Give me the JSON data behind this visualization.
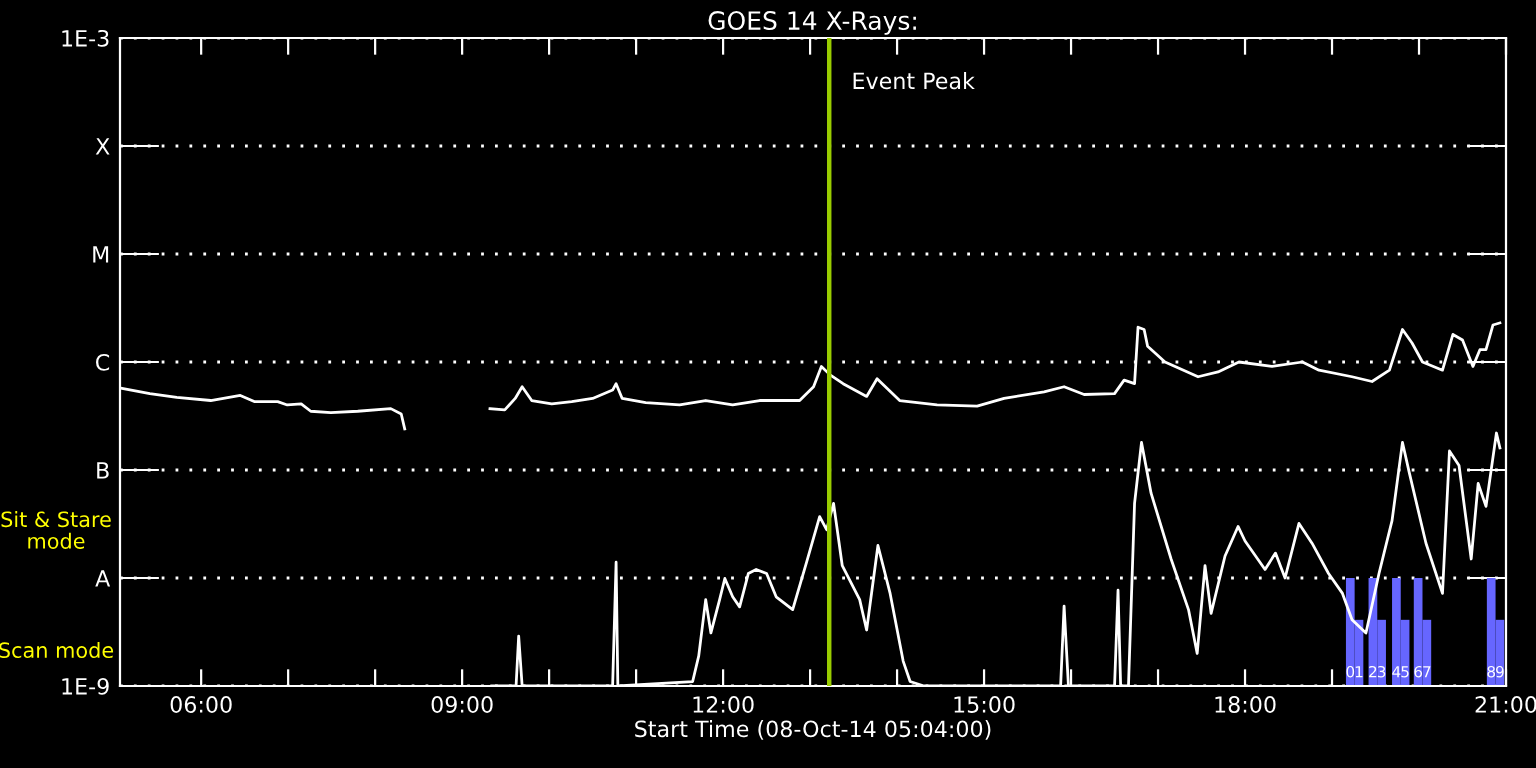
{
  "chart_data": {
    "type": "line",
    "title": "GOES 14 X-Rays:",
    "xlabel": "Start Time (08-Oct-14 05:04:00)",
    "log": true,
    "grid": "y",
    "xlim": [
      5.067,
      21.0
    ],
    "xticks": [
      {
        "value": 6,
        "label": "06:00"
      },
      {
        "value": 7,
        "label": null
      },
      {
        "value": 8,
        "label": null
      },
      {
        "value": 9,
        "label": "09:00"
      },
      {
        "value": 10,
        "label": null
      },
      {
        "value": 11,
        "label": null
      },
      {
        "value": 12,
        "label": "12:00"
      },
      {
        "value": 13,
        "label": null
      },
      {
        "value": 14,
        "label": null
      },
      {
        "value": 15,
        "label": "15:00"
      },
      {
        "value": 16,
        "label": null
      },
      {
        "value": 17,
        "label": null
      },
      {
        "value": 18,
        "label": "18:00"
      },
      {
        "value": 19,
        "label": null
      },
      {
        "value": 20,
        "label": null
      },
      {
        "value": 21,
        "label": "21:00"
      }
    ],
    "ylim": [
      1e-09,
      0.001
    ],
    "yticks": [
      {
        "value": 1e-09,
        "label": "1E-9"
      },
      {
        "value": 1e-08,
        "label": "A"
      },
      {
        "value": 1e-07,
        "label": "B"
      },
      {
        "value": 1e-06,
        "label": "C"
      },
      {
        "value": 1e-05,
        "label": "M"
      },
      {
        "value": 0.0001,
        "label": "X"
      },
      {
        "value": 0.001,
        "label": "1E-3"
      }
    ],
    "ref_lines": [
      {
        "axis": "x",
        "value": 13.22,
        "label": "Event Peak",
        "color": "#99cc00"
      }
    ],
    "series": [
      {
        "type": "bar",
        "color": "#6666ff",
        "x": [
          19.21,
          19.31,
          19.47,
          19.57,
          19.74,
          19.84,
          19.99,
          20.09,
          20.83,
          20.93
        ],
        "base": [
          1e-09,
          1e-09,
          1e-09,
          1e-09,
          1e-09,
          1e-09,
          1e-09,
          1e-09,
          1e-09,
          1e-09
        ],
        "values": [
          9e-09,
          3.1e-09,
          9e-09,
          3.1e-09,
          9e-09,
          3.1e-09,
          9e-09,
          3.1e-09,
          9e-09,
          3.1e-09
        ]
      },
      {
        "color": "#ffffff",
        "x": [
          5.09,
          5.41,
          5.72,
          6.11,
          6.45,
          6.61,
          6.88,
          6.99,
          7.15,
          7.26,
          7.49,
          7.8,
          8.18,
          8.3,
          8.34,
          8.8,
          9.32,
          9.49,
          9.61,
          9.69,
          9.8,
          10.03,
          10.26,
          10.5,
          10.73,
          10.77,
          10.84,
          11.11,
          11.5,
          11.8,
          12.11,
          12.42,
          12.88,
          13.04,
          13.13,
          13.23,
          13.38,
          13.65,
          13.77,
          14.03,
          14.46,
          14.92,
          15.23,
          15.69,
          15.92,
          16.15,
          16.5,
          16.61,
          16.73,
          16.77,
          16.84,
          16.88,
          17.08,
          17.46,
          17.69,
          17.93,
          18.31,
          18.66,
          18.85,
          19.23,
          19.46,
          19.66,
          19.81,
          19.92,
          20.04,
          20.27,
          20.39,
          20.5,
          20.62,
          20.7,
          20.77,
          20.85,
          20.93
        ],
        "values": [
          5.7e-07,
          5.1e-07,
          4.7e-07,
          4.4e-07,
          4.9e-07,
          4.3e-07,
          4.3e-07,
          4e-07,
          4.1e-07,
          3.5e-07,
          3.4e-07,
          3.5e-07,
          3.7e-07,
          3.3e-07,
          2.4e-07,
          null,
          3.7e-07,
          3.6e-07,
          4.6e-07,
          5.9e-07,
          4.4e-07,
          4.1e-07,
          4.3e-07,
          4.6e-07,
          5.5e-07,
          6.3e-07,
          4.6e-07,
          4.2e-07,
          4e-07,
          4.4e-07,
          4e-07,
          4.4e-07,
          4.4e-07,
          5.9e-07,
          9.1e-07,
          7.6e-07,
          6.3e-07,
          4.8e-07,
          7e-07,
          4.4e-07,
          4e-07,
          3.9e-07,
          4.6e-07,
          5.3e-07,
          5.9e-07,
          5e-07,
          5.1e-07,
          6.8e-07,
          6.3e-07,
          2.1e-06,
          2e-06,
          1.4e-06,
          1e-06,
          7.3e-07,
          8.1e-07,
          1e-06,
          9.1e-07,
          1e-06,
          8.4e-07,
          7.3e-07,
          6.6e-07,
          8.4e-07,
          2e-06,
          1.5e-06,
          1e-06,
          8.4e-07,
          1.8e-06,
          1.6e-06,
          9.1e-07,
          1.3e-06,
          1.3e-06,
          2.2e-06,
          2.3e-06
        ]
      },
      {
        "color": "#ffffff",
        "x": [
          9.34,
          9.62,
          9.65,
          9.69,
          10.73,
          10.77,
          10.79,
          11.65,
          11.72,
          11.8,
          11.86,
          11.96,
          12.02,
          12.11,
          12.19,
          12.29,
          12.38,
          12.5,
          12.61,
          12.8,
          12.96,
          13.11,
          13.19,
          13.27,
          13.37,
          13.57,
          13.65,
          13.78,
          13.92,
          14.07,
          14.15,
          14.31,
          15.88,
          15.92,
          15.97,
          16.5,
          16.54,
          16.57,
          16.66,
          16.73,
          16.81,
          16.92,
          17.15,
          17.35,
          17.45,
          17.54,
          17.61,
          17.77,
          17.92,
          18.0,
          18.23,
          18.35,
          18.46,
          18.62,
          18.77,
          18.96,
          19.12,
          19.23,
          19.39,
          19.54,
          19.69,
          19.81,
          19.89,
          20.08,
          20.27,
          20.35,
          20.46,
          20.6,
          20.68,
          20.77,
          20.89,
          20.93
        ],
        "values": [
          1e-09,
          1e-09,
          2.9e-09,
          1e-09,
          1e-09,
          1.4e-08,
          1e-09,
          1.1e-09,
          1.9e-09,
          6.3e-09,
          3.1e-09,
          6.3e-09,
          9.9e-09,
          6.7e-09,
          5.4e-09,
          1.1e-08,
          1.2e-08,
          1.1e-08,
          6.7e-09,
          5.1e-09,
          1.4e-08,
          3.7e-08,
          2.8e-08,
          4.9e-08,
          1.3e-08,
          6.3e-09,
          3.3e-09,
          2e-08,
          7.2e-09,
          1.7e-09,
          1.1e-09,
          1e-09,
          1e-09,
          5.5e-09,
          1e-09,
          1e-09,
          7.7e-09,
          1e-09,
          1e-09,
          4.9e-08,
          1.8e-07,
          6.1e-08,
          1.5e-08,
          5.1e-09,
          2e-09,
          1.3e-08,
          4.7e-09,
          1.6e-08,
          3e-08,
          2.2e-08,
          1.2e-08,
          1.7e-08,
          1e-08,
          3.2e-08,
          2.1e-08,
          1.1e-08,
          7.2e-09,
          4.1e-09,
          3.1e-09,
          1.1e-08,
          3.4e-08,
          1.8e-07,
          9.3e-08,
          2.1e-08,
          7.2e-09,
          1.5e-07,
          1.1e-07,
          1.5e-08,
          7.5e-08,
          4.6e-08,
          2.2e-07,
          1.6e-07
        ]
      }
    ],
    "annotations": [
      "Sit & Stare\nmode",
      "Scan mode",
      {
        "text": "0",
        "x": 19.21,
        "y": 1e-09
      },
      {
        "text": "1",
        "x": 19.31,
        "y": 1e-09
      },
      {
        "text": "2",
        "x": 19.47,
        "y": 1e-09
      },
      {
        "text": "3",
        "x": 19.57,
        "y": 1e-09
      },
      {
        "text": "4",
        "x": 19.74,
        "y": 1e-09
      },
      {
        "text": "5",
        "x": 19.84,
        "y": 1e-09
      },
      {
        "text": "6",
        "x": 19.99,
        "y": 1e-09
      },
      {
        "text": "7",
        "x": 20.09,
        "y": 1e-09
      },
      {
        "text": "8",
        "x": 20.83,
        "y": 1e-09
      },
      {
        "text": "9",
        "x": 20.93,
        "y": 1e-09
      }
    ]
  }
}
